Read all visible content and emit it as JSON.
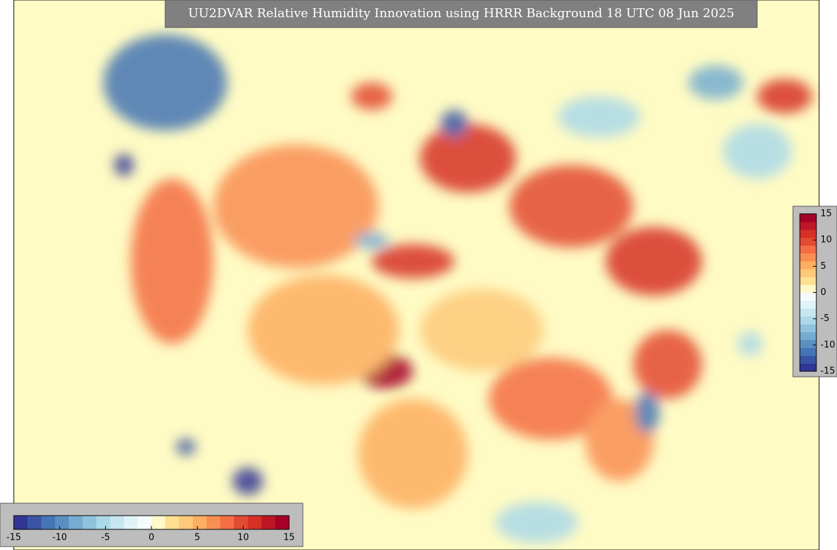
{
  "title": "UU2DVAR Relative Humidity Innovation using HRRR Background 18 UTC 08 Jun 2025",
  "colorbars": [
    {
      "orientation": "vertical",
      "range": [
        -15,
        15
      ],
      "ticks": [
        -15,
        -10,
        -5,
        0,
        5,
        10,
        15
      ],
      "colors": [
        "#313695",
        "#3a54a4",
        "#4575b4",
        "#5b8fc2",
        "#74add1",
        "#8fc3dd",
        "#abd9e9",
        "#c6e6f0",
        "#e0f3f8",
        "#f5fbfc",
        "#fff8c8",
        "#fee090",
        "#fdc97a",
        "#fdae61",
        "#f98e52",
        "#f46d43",
        "#e34a33",
        "#d73027",
        "#bd1726",
        "#a50026"
      ]
    },
    {
      "orientation": "horizontal",
      "range": [
        -15,
        15
      ],
      "ticks": [
        -15,
        -10,
        -5,
        0,
        5,
        10,
        15
      ],
      "colors": [
        "#313695",
        "#3a54a4",
        "#4575b4",
        "#5b8fc2",
        "#74add1",
        "#8fc3dd",
        "#abd9e9",
        "#c6e6f0",
        "#e0f3f8",
        "#f5fbfc",
        "#fff8c8",
        "#fee090",
        "#fdc97a",
        "#fdae61",
        "#f98e52",
        "#f46d43",
        "#e34a33",
        "#d73027",
        "#bd1726",
        "#a50026"
      ]
    }
  ]
}
